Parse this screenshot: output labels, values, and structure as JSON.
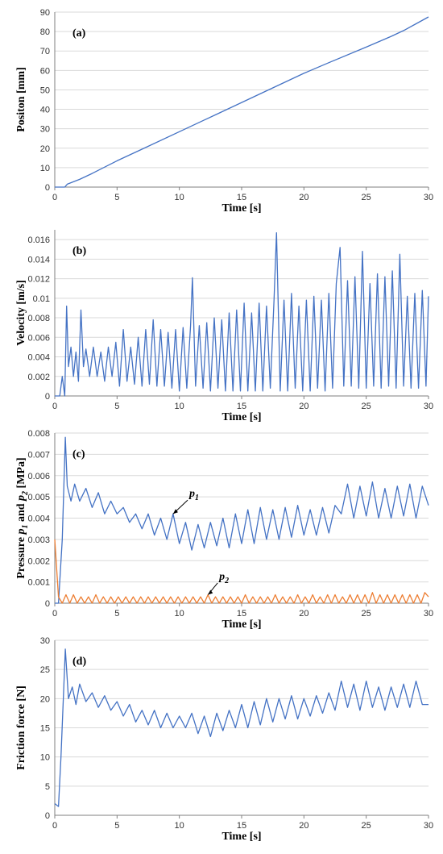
{
  "chart_data": [
    {
      "type": "line",
      "panel_label": "(a)",
      "xlabel": "Time [s]",
      "ylabel": "Positon [mm]",
      "xlim": [
        0,
        30
      ],
      "ylim": [
        0,
        90
      ],
      "xticks": [
        "0",
        "5",
        "10",
        "15",
        "20",
        "25",
        "30"
      ],
      "yticks": [
        "0",
        "10",
        "20",
        "30",
        "40",
        "50",
        "60",
        "70",
        "80",
        "90"
      ],
      "grid": "horizontal",
      "series": [
        {
          "color": "#4472C4",
          "x": [
            0,
            0.8,
            1.0,
            2,
            3,
            5,
            7,
            10,
            13,
            15,
            17,
            20,
            22,
            25,
            27,
            28,
            29,
            30
          ],
          "y": [
            0,
            0,
            1.5,
            4,
            7,
            13.5,
            19.5,
            28.5,
            37.5,
            43.5,
            49.5,
            58.5,
            64,
            72,
            77.5,
            80.5,
            84,
            87.5
          ]
        }
      ]
    },
    {
      "type": "line",
      "panel_label": "(b)",
      "xlabel": "Time [s]",
      "ylabel": "Velocity [m/s]",
      "xlim": [
        0,
        30
      ],
      "ylim": [
        0,
        0.017
      ],
      "xticks": [
        "0",
        "5",
        "10",
        "15",
        "20",
        "25",
        "30"
      ],
      "yticks": [
        "0",
        "0.002",
        "0.004",
        "0.006",
        "0.008",
        "0.01",
        "0.012",
        "0.014",
        "0.016"
      ],
      "grid": "horizontal",
      "series": [
        {
          "color": "#4472C4",
          "x": [
            0,
            0.2,
            0.4,
            0.6,
            0.8,
            0.95,
            1.1,
            1.3,
            1.5,
            1.7,
            1.9,
            2.1,
            2.3,
            2.5,
            2.8,
            3.1,
            3.4,
            3.7,
            4.0,
            4.3,
            4.6,
            4.9,
            5.2,
            5.5,
            5.8,
            6.1,
            6.4,
            6.7,
            7.0,
            7.3,
            7.6,
            7.9,
            8.2,
            8.5,
            8.8,
            9.1,
            9.4,
            9.7,
            10.0,
            10.3,
            10.6,
            10.9,
            11.05,
            11.3,
            11.6,
            11.9,
            12.2,
            12.5,
            12.8,
            13.1,
            13.4,
            13.7,
            14.0,
            14.3,
            14.6,
            14.9,
            15.2,
            15.5,
            15.8,
            16.1,
            16.4,
            16.7,
            17.0,
            17.3,
            17.6,
            17.8,
            18.1,
            18.4,
            18.7,
            19.0,
            19.3,
            19.6,
            19.9,
            20.2,
            20.5,
            20.8,
            21.1,
            21.4,
            21.7,
            22.0,
            22.3,
            22.6,
            22.9,
            23.2,
            23.5,
            23.8,
            24.1,
            24.4,
            24.7,
            25.0,
            25.3,
            25.6,
            25.9,
            26.2,
            26.5,
            26.8,
            27.1,
            27.4,
            27.7,
            28.0,
            28.3,
            28.6,
            28.9,
            29.2,
            29.5,
            29.8,
            30
          ],
          "y": [
            0,
            0,
            0,
            0.002,
            0,
            0.0092,
            0.003,
            0.005,
            0.002,
            0.0045,
            0.0015,
            0.0088,
            0.003,
            0.0048,
            0.002,
            0.005,
            0.002,
            0.0045,
            0.0015,
            0.005,
            0.002,
            0.0055,
            0.001,
            0.0068,
            0.0015,
            0.005,
            0.0012,
            0.006,
            0.001,
            0.0068,
            0.0012,
            0.0078,
            0.001,
            0.0068,
            0.001,
            0.0065,
            0.0008,
            0.0068,
            0.0005,
            0.007,
            0.0008,
            0.0072,
            0.0121,
            0.001,
            0.0072,
            0.0008,
            0.0075,
            0.0005,
            0.008,
            0.0008,
            0.0078,
            0.0005,
            0.0085,
            0.0005,
            0.0088,
            0.0005,
            0.0095,
            0.0005,
            0.0085,
            0.0005,
            0.0095,
            0.0005,
            0.0092,
            0.0008,
            0.0098,
            0.0167,
            0.0005,
            0.0098,
            0.0005,
            0.0105,
            0.0008,
            0.0092,
            0.0005,
            0.0098,
            0.0005,
            0.0102,
            0.0008,
            0.0098,
            0.0005,
            0.0105,
            0.0008,
            0.0115,
            0.0152,
            0.001,
            0.0118,
            0.001,
            0.0122,
            0.0008,
            0.0148,
            0.0008,
            0.0115,
            0.001,
            0.0125,
            0.0008,
            0.0122,
            0.001,
            0.0128,
            0.0008,
            0.0145,
            0.001,
            0.0102,
            0.0008,
            0.0105,
            0.0008,
            0.0108,
            0.001,
            0.0102
          ]
        }
      ]
    },
    {
      "type": "line",
      "panel_label": "(c)",
      "xlabel": "Time [s]",
      "ylabel": "Pressure p1 and p2 [MPa]",
      "xlim": [
        0,
        30
      ],
      "ylim": [
        0,
        0.008
      ],
      "xticks": [
        "0",
        "5",
        "10",
        "15",
        "20",
        "25",
        "30"
      ],
      "yticks": [
        "0",
        "0.001",
        "0.002",
        "0.003",
        "0.004",
        "0.005",
        "0.006",
        "0.007",
        "0.008"
      ],
      "grid": "horizontal",
      "annotations": [
        {
          "label": "p",
          "sub": "1",
          "x": 10.8,
          "y": 0.005,
          "arrow_to_x": 9.5,
          "arrow_to_y": 0.0042
        },
        {
          "label": "p",
          "sub": "2",
          "x": 13.2,
          "y": 0.0011,
          "arrow_to_x": 12.3,
          "arrow_to_y": 0.0004
        }
      ],
      "series": [
        {
          "color": "#4472C4",
          "x": [
            0,
            0.3,
            0.6,
            0.85,
            1.0,
            1.3,
            1.6,
            2.0,
            2.5,
            3.0,
            3.5,
            4.0,
            4.5,
            5.0,
            5.5,
            6.0,
            6.5,
            7.0,
            7.5,
            8.0,
            8.5,
            9.0,
            9.5,
            10.0,
            10.5,
            11.0,
            11.5,
            12.0,
            12.5,
            13.0,
            13.5,
            14.0,
            14.5,
            15.0,
            15.5,
            16.0,
            16.5,
            17.0,
            17.5,
            18.0,
            18.5,
            19.0,
            19.5,
            20.0,
            20.5,
            21.0,
            21.5,
            22.0,
            22.5,
            23.0,
            23.5,
            24.0,
            24.5,
            25.0,
            25.5,
            26.0,
            26.5,
            27.0,
            27.5,
            28.0,
            28.5,
            29.0,
            29.5,
            30
          ],
          "y": [
            0,
            0,
            0.003,
            0.0078,
            0.0055,
            0.0048,
            0.0056,
            0.0048,
            0.0054,
            0.0045,
            0.0052,
            0.0042,
            0.0048,
            0.0042,
            0.0045,
            0.0038,
            0.0042,
            0.0035,
            0.0042,
            0.0032,
            0.004,
            0.003,
            0.0042,
            0.0028,
            0.0038,
            0.0025,
            0.0037,
            0.0026,
            0.0038,
            0.0027,
            0.004,
            0.0026,
            0.0042,
            0.0028,
            0.0044,
            0.0028,
            0.0045,
            0.003,
            0.0044,
            0.003,
            0.0045,
            0.0031,
            0.0046,
            0.0032,
            0.0044,
            0.0032,
            0.0045,
            0.0033,
            0.0046,
            0.0042,
            0.0056,
            0.004,
            0.0055,
            0.0041,
            0.0057,
            0.004,
            0.0054,
            0.004,
            0.0055,
            0.0041,
            0.0056,
            0.004,
            0.0055,
            0.0046
          ]
        },
        {
          "color": "#ED7D31",
          "x": [
            0,
            0.3,
            0.6,
            0.9,
            1.2,
            1.5,
            1.8,
            2.1,
            2.4,
            2.7,
            3.0,
            3.3,
            3.6,
            3.9,
            4.2,
            4.5,
            4.8,
            5.1,
            5.4,
            5.7,
            6.0,
            6.3,
            6.6,
            6.9,
            7.2,
            7.5,
            7.8,
            8.1,
            8.4,
            8.7,
            9.0,
            9.3,
            9.6,
            9.9,
            10.2,
            10.5,
            10.8,
            11.1,
            11.4,
            11.7,
            12.0,
            12.3,
            12.6,
            12.9,
            13.2,
            13.5,
            13.8,
            14.1,
            14.4,
            14.7,
            15.0,
            15.3,
            15.6,
            15.9,
            16.2,
            16.5,
            16.8,
            17.1,
            17.4,
            17.7,
            18.0,
            18.3,
            18.6,
            18.9,
            19.2,
            19.5,
            19.8,
            20.1,
            20.4,
            20.7,
            21.0,
            21.3,
            21.6,
            21.9,
            22.2,
            22.5,
            22.8,
            23.1,
            23.4,
            23.7,
            24.0,
            24.3,
            24.6,
            24.9,
            25.2,
            25.5,
            25.8,
            26.1,
            26.4,
            26.7,
            27.0,
            27.3,
            27.6,
            27.9,
            28.2,
            28.5,
            28.8,
            29.1,
            29.4,
            29.7,
            30
          ],
          "y": [
            0.003,
            0.0003,
            0,
            0.0004,
            0,
            0.0004,
            0,
            0.0003,
            0,
            0.0003,
            0,
            0.0004,
            0,
            0.0003,
            0,
            0.0003,
            0,
            0.0003,
            0,
            0.0003,
            0,
            0.0003,
            0,
            0.0003,
            0,
            0.0003,
            0,
            0.0003,
            0,
            0.0003,
            0,
            0.0003,
            0,
            0.0003,
            0,
            0.0003,
            0,
            0.0003,
            0,
            0.0003,
            0,
            0.0004,
            0,
            0.0003,
            0,
            0.0003,
            0,
            0.0003,
            0,
            0.0003,
            0,
            0.0004,
            0,
            0.0003,
            0,
            0.0003,
            0,
            0.0003,
            0,
            0.0004,
            0,
            0.0003,
            0,
            0.0003,
            0,
            0.0004,
            0,
            0.0003,
            0,
            0.0004,
            0,
            0.0003,
            0,
            0.0004,
            0,
            0.0004,
            0,
            0.0003,
            0,
            0.0004,
            0,
            0.0004,
            0,
            0.0004,
            0,
            0.0005,
            0,
            0.0004,
            0,
            0.0004,
            0,
            0.0004,
            0,
            0.0004,
            0,
            0.0004,
            0,
            0.0004,
            0,
            0.0005,
            0.0003
          ]
        }
      ]
    },
    {
      "type": "line",
      "panel_label": "(d)",
      "xlabel": "Time [s]",
      "ylabel": "Friction force [N]",
      "xlim": [
        0,
        30
      ],
      "ylim": [
        0,
        30
      ],
      "xticks": [
        "0",
        "5",
        "10",
        "15",
        "20",
        "25",
        "30"
      ],
      "yticks": [
        "0",
        "5",
        "10",
        "15",
        "20",
        "25",
        "30"
      ],
      "grid": "horizontal",
      "series": [
        {
          "color": "#4472C4",
          "x": [
            0,
            0.3,
            0.5,
            0.85,
            1.1,
            1.4,
            1.7,
            2.0,
            2.5,
            3.0,
            3.5,
            4.0,
            4.5,
            5.0,
            5.5,
            6.0,
            6.5,
            7.0,
            7.5,
            8.0,
            8.5,
            9.0,
            9.5,
            10.0,
            10.5,
            11.0,
            11.5,
            12.0,
            12.5,
            13.0,
            13.5,
            14.0,
            14.5,
            15.0,
            15.5,
            16.0,
            16.5,
            17.0,
            17.5,
            18.0,
            18.5,
            19.0,
            19.5,
            20.0,
            20.5,
            21.0,
            21.5,
            22.0,
            22.5,
            23.0,
            23.5,
            24.0,
            24.5,
            25.0,
            25.5,
            26.0,
            26.5,
            27.0,
            27.5,
            28.0,
            28.5,
            29.0,
            29.5,
            30
          ],
          "y": [
            2,
            1.5,
            10,
            28.5,
            20,
            22,
            19,
            22.5,
            19.5,
            21,
            18.5,
            20.5,
            18,
            19.5,
            17,
            19,
            16,
            18,
            15.5,
            18,
            15,
            17.5,
            15,
            17,
            15,
            17.5,
            14,
            17,
            13.5,
            17.5,
            14.5,
            18,
            15,
            19,
            15,
            19.5,
            15.5,
            20,
            16,
            20,
            16.5,
            20.5,
            16.5,
            20,
            17,
            20.5,
            17.5,
            21,
            18,
            23,
            18.5,
            22.5,
            18,
            23,
            18.5,
            22,
            18,
            22,
            18.5,
            22.5,
            18.5,
            23,
            19,
            19
          ]
        }
      ]
    }
  ]
}
